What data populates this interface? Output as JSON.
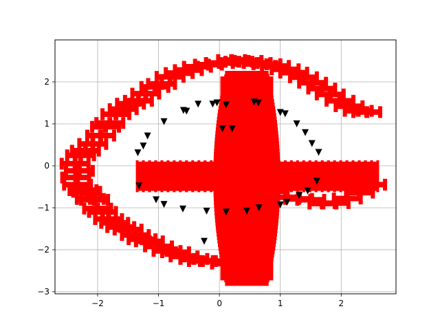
{
  "chart_data": {
    "type": "scatter",
    "title": "",
    "xlabel": "",
    "ylabel": "",
    "xlim": [
      -2.7,
      2.9
    ],
    "ylim": [
      -3.05,
      3.0
    ],
    "xticks": [
      -2,
      -1,
      0,
      1,
      2
    ],
    "yticks": [
      -3,
      -2,
      -1,
      0,
      1,
      2
    ],
    "xtick_labels": [
      "−2",
      "−1",
      "0",
      "1",
      "2"
    ],
    "ytick_labels": [
      "−3",
      "−2",
      "−1",
      "0",
      "1",
      "2"
    ],
    "grid": true,
    "legend": "none",
    "series": [
      {
        "marker": "triangle-down",
        "color": "#000000",
        "points": [
          [
            -1.34,
            0.31
          ],
          [
            -1.25,
            0.47
          ],
          [
            -1.18,
            0.71
          ],
          [
            -0.91,
            1.05
          ],
          [
            -0.59,
            1.32
          ],
          [
            -0.54,
            1.3
          ],
          [
            -0.35,
            1.47
          ],
          [
            -0.11,
            1.47
          ],
          [
            -0.04,
            1.5
          ],
          [
            0.11,
            1.45
          ],
          [
            0.57,
            1.52
          ],
          [
            0.64,
            1.5
          ],
          [
            1.0,
            1.27
          ],
          [
            1.08,
            1.24
          ],
          [
            1.27,
            1.0
          ],
          [
            1.41,
            0.79
          ],
          [
            1.52,
            0.53
          ],
          [
            1.63,
            0.32
          ],
          [
            0.05,
            0.88
          ],
          [
            0.21,
            0.88
          ],
          [
            -1.32,
            -0.48
          ],
          [
            -1.04,
            -0.81
          ],
          [
            -0.91,
            -0.92
          ],
          [
            -0.6,
            -1.03
          ],
          [
            -0.21,
            -1.08
          ],
          [
            0.11,
            -1.1
          ],
          [
            0.45,
            -1.08
          ],
          [
            0.65,
            -1.0
          ],
          [
            1.0,
            -0.93
          ],
          [
            1.11,
            -0.87
          ],
          [
            1.31,
            -0.71
          ],
          [
            1.45,
            -0.6
          ],
          [
            1.6,
            -0.37
          ],
          [
            -0.25,
            -1.8
          ]
        ]
      },
      {
        "name": "",
        "marker": "error-cross",
        "color": "#ff0000",
        "ring_points": [
          [
            -2.37,
            0.05
          ],
          [
            -2.36,
            -0.28
          ],
          [
            -2.33,
            -0.45
          ],
          [
            -2.3,
            -0.12
          ],
          [
            -2.28,
            0.25
          ],
          [
            -2.24,
            -0.58
          ],
          [
            -2.2,
            0.36
          ],
          [
            -2.18,
            -0.62
          ],
          [
            -2.12,
            -0.79
          ],
          [
            -2.08,
            0.52
          ],
          [
            -2.05,
            -0.81
          ],
          [
            -2.0,
            -1.02
          ],
          [
            -1.95,
            0.72
          ],
          [
            -1.92,
            -1.1
          ],
          [
            -1.87,
            0.93
          ],
          [
            -1.82,
            -1.27
          ],
          [
            -1.8,
            1.02
          ],
          [
            -1.72,
            -1.36
          ],
          [
            -1.7,
            1.23
          ],
          [
            -1.62,
            -1.46
          ],
          [
            -1.58,
            1.35
          ],
          [
            -1.5,
            -1.52
          ],
          [
            -1.46,
            1.48
          ],
          [
            -1.38,
            -1.65
          ],
          [
            -1.33,
            1.55
          ],
          [
            -1.27,
            -1.75
          ],
          [
            -1.21,
            1.72
          ],
          [
            -1.15,
            -1.8
          ],
          [
            -1.06,
            1.88
          ],
          [
            -1.0,
            -1.92
          ],
          [
            -0.95,
            1.95
          ],
          [
            -0.86,
            -2.03
          ],
          [
            -0.81,
            2.12
          ],
          [
            -0.72,
            -2.06
          ],
          [
            -0.66,
            2.21
          ],
          [
            -0.58,
            -2.16
          ],
          [
            -0.51,
            2.28
          ],
          [
            -0.42,
            -2.22
          ],
          [
            -0.36,
            2.36
          ],
          [
            -0.28,
            -2.27
          ],
          [
            -0.18,
            2.41
          ],
          [
            -0.1,
            -2.27
          ],
          [
            0.0,
            2.45
          ],
          [
            0.1,
            -2.33
          ],
          [
            0.2,
            2.52
          ],
          [
            0.32,
            2.48
          ],
          [
            0.47,
            2.5
          ],
          [
            0.62,
            2.45
          ],
          [
            0.78,
            2.42
          ],
          [
            0.92,
            2.38
          ],
          [
            1.08,
            2.3
          ],
          [
            1.22,
            2.22
          ],
          [
            1.38,
            2.11
          ],
          [
            1.53,
            1.98
          ],
          [
            1.68,
            1.84
          ],
          [
            1.82,
            1.7
          ],
          [
            1.98,
            1.55
          ],
          [
            2.13,
            1.42
          ],
          [
            2.28,
            1.31
          ],
          [
            2.42,
            1.28
          ],
          [
            0.9,
            -0.61
          ],
          [
            1.1,
            -0.75
          ],
          [
            1.3,
            -0.79
          ],
          [
            1.5,
            -0.81
          ],
          [
            1.7,
            -0.9
          ],
          [
            1.9,
            -0.89
          ],
          [
            2.1,
            -0.78
          ],
          [
            2.3,
            -0.64
          ],
          [
            2.5,
            -0.45
          ]
        ],
        "center_cluster_x": [
          -1.35,
          2.6
        ],
        "center_cluster_y": [
          -0.55,
          0.05
        ],
        "vertical_blob_x": [
          -0.1,
          1.0
        ],
        "vertical_blob_y": [
          -2.78,
          2.18
        ]
      }
    ]
  }
}
